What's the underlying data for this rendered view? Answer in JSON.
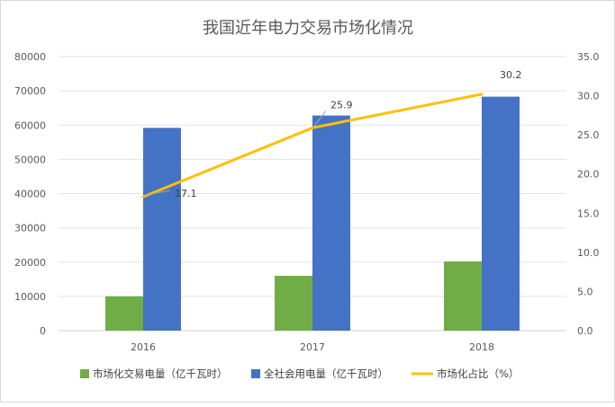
{
  "chart_data": {
    "type": "bar+line",
    "title": "我国近年电力交易市场化情况",
    "categories": [
      "2016",
      "2017",
      "2018"
    ],
    "series": [
      {
        "name": "市场化交易电量（亿千瓦时）",
        "type": "bar",
        "axis": "left",
        "color": "#70ad47",
        "values": [
          10000,
          16000,
          20200
        ]
      },
      {
        "name": "全社会用电量（亿千瓦时）",
        "type": "bar",
        "axis": "left",
        "color": "#4472c4",
        "values": [
          59200,
          62800,
          68300
        ]
      },
      {
        "name": "市场化占比（%）",
        "type": "line",
        "axis": "right",
        "color": "#ffc000",
        "values": [
          17.1,
          25.9,
          30.2
        ],
        "data_labels": [
          "17.1",
          "25.9",
          "30.2"
        ]
      }
    ],
    "ylim_left": [
      0,
      80000
    ],
    "yticks_left": [
      "0",
      "10000",
      "20000",
      "30000",
      "40000",
      "50000",
      "60000",
      "70000",
      "80000"
    ],
    "ylim_right": [
      0,
      35
    ],
    "yticks_right": [
      "0.0",
      "5.0",
      "10.0",
      "15.0",
      "20.0",
      "25.0",
      "30.0",
      "35.0"
    ],
    "grid": true,
    "legend": "bottom"
  }
}
